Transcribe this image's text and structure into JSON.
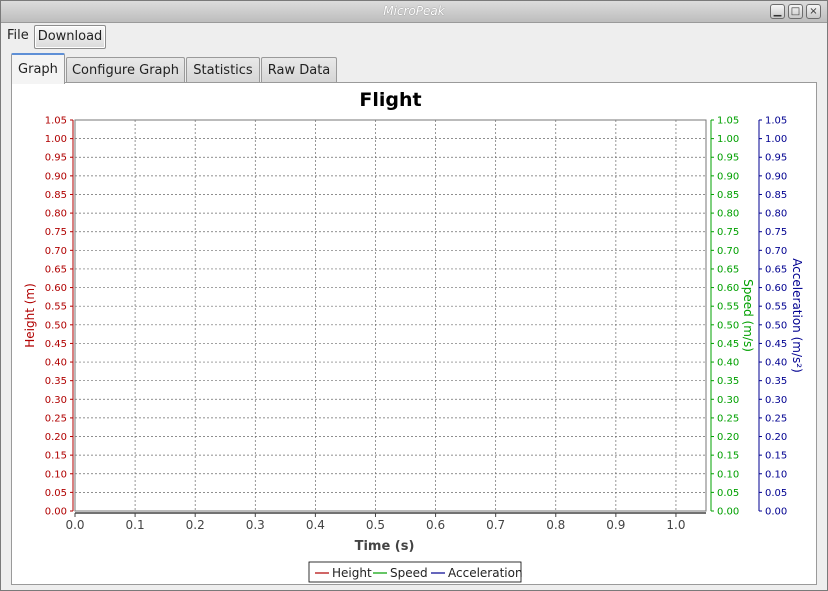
{
  "window": {
    "title": "MicroPeak"
  },
  "menubar": {
    "file_label": "File",
    "download_label": "Download"
  },
  "tabs": [
    {
      "label": "Graph"
    },
    {
      "label": "Configure Graph"
    },
    {
      "label": "Statistics"
    },
    {
      "label": "Raw Data"
    }
  ],
  "colors": {
    "height": "#b00000",
    "speed": "#00a000",
    "acceleration": "#000090",
    "accent": "#5e8fd6"
  },
  "chart_data": {
    "type": "line",
    "title": "Flight",
    "xlabel": "Time (s)",
    "xlim": [
      0.0,
      1.05
    ],
    "x_ticks": [
      "0.0",
      "0.1",
      "0.2",
      "0.3",
      "0.4",
      "0.5",
      "0.6",
      "0.7",
      "0.8",
      "0.9",
      "1.0"
    ],
    "y_ticks": [
      "0.00",
      "0.05",
      "0.10",
      "0.15",
      "0.20",
      "0.25",
      "0.30",
      "0.35",
      "0.40",
      "0.45",
      "0.50",
      "0.55",
      "0.60",
      "0.65",
      "0.70",
      "0.75",
      "0.80",
      "0.85",
      "0.90",
      "0.95",
      "1.00",
      "1.05"
    ],
    "grid": true,
    "legend_position": "bottom",
    "axes": [
      {
        "label": "Height (m)",
        "ylim": [
          0.0,
          1.05
        ],
        "side": "left",
        "color": "#b00000"
      },
      {
        "label": "Speed (m/s)",
        "ylim": [
          0.0,
          1.05
        ],
        "side": "right",
        "color": "#00a000"
      },
      {
        "label": "Acceleration (m/s²)",
        "ylim": [
          0.0,
          1.05
        ],
        "side": "right",
        "color": "#000090"
      }
    ],
    "series": [
      {
        "name": "Height",
        "color": "#b00000",
        "x": [],
        "y": []
      },
      {
        "name": "Speed",
        "color": "#00a000",
        "x": [],
        "y": []
      },
      {
        "name": "Acceleration",
        "color": "#000090",
        "x": [],
        "y": []
      }
    ]
  }
}
